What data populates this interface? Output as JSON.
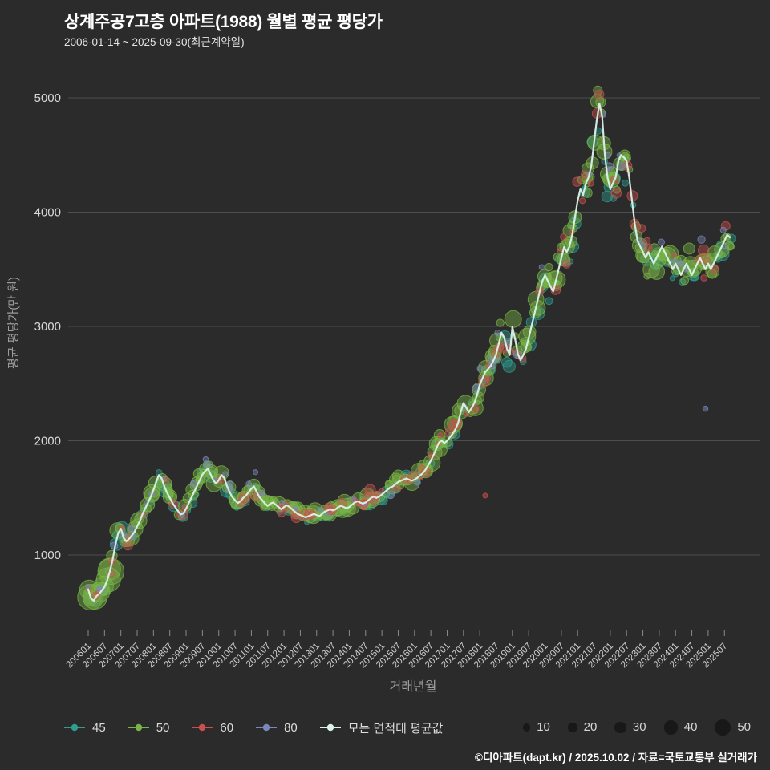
{
  "header": {
    "title": "상계주공7고층 아파트(1988) 월별 평균 평당가",
    "subtitle": "2006-01-14 ~ 2025-09-30(최근계약일)"
  },
  "footer": {
    "credit": "©디아파트(dapt.kr) / 2025.10.02 / 자료=국토교통부 실거래가"
  },
  "chart_data": {
    "type": "scatter",
    "title": "상계주공7고층 아파트(1988) 월별 평균 평당가",
    "subtitle": "2006-01-14 ~ 2025-09-30(최근계약일)",
    "xlabel": "거래년월",
    "ylabel": "평균 평당가(만 원)",
    "x_start": "2006-01",
    "x_end": "2025-09",
    "ylim": [
      300,
      5300
    ],
    "yticks": [
      1000,
      2000,
      3000,
      4000,
      5000
    ],
    "grid": "horizontal",
    "legend_position": "bottom",
    "xticks": [
      "200601",
      "200607",
      "200701",
      "200707",
      "200801",
      "200807",
      "200901",
      "200907",
      "201001",
      "201007",
      "201101",
      "201107",
      "201201",
      "201207",
      "201301",
      "201307",
      "201401",
      "201407",
      "201501",
      "201507",
      "201601",
      "201607",
      "201701",
      "201707",
      "201801",
      "201807",
      "201901",
      "201907",
      "202001",
      "202007",
      "202101",
      "202107",
      "202201",
      "202207",
      "202301",
      "202307",
      "202401",
      "202407",
      "202501",
      "202507"
    ],
    "series": [
      {
        "name": "모든 면적대 평균값",
        "type": "line",
        "color": "#dcf1ea",
        "values": [
          700,
          620,
          600,
          640,
          660,
          690,
          720,
          780,
          860,
          960,
          1090,
          1190,
          1230,
          1150,
          1120,
          1140,
          1170,
          1200,
          1250,
          1300,
          1360,
          1410,
          1460,
          1510,
          1570,
          1640,
          1700,
          1670,
          1600,
          1545,
          1500,
          1455,
          1420,
          1385,
          1355,
          1365,
          1405,
          1455,
          1505,
          1555,
          1605,
          1655,
          1705,
          1735,
          1755,
          1705,
          1655,
          1625,
          1655,
          1700,
          1675,
          1605,
          1550,
          1505,
          1480,
          1455,
          1470,
          1500,
          1520,
          1550,
          1580,
          1600,
          1550,
          1505,
          1480,
          1450,
          1430,
          1450,
          1460,
          1440,
          1420,
          1400,
          1420,
          1435,
          1420,
          1400,
          1380,
          1360,
          1350,
          1340,
          1330,
          1340,
          1350,
          1360,
          1350,
          1340,
          1360,
          1380,
          1390,
          1400,
          1390,
          1400,
          1420,
          1430,
          1420,
          1410,
          1420,
          1440,
          1460,
          1470,
          1460,
          1450,
          1460,
          1480,
          1500,
          1510,
          1500,
          1510,
          1530,
          1550,
          1570,
          1590,
          1600,
          1620,
          1640,
          1650,
          1660,
          1670,
          1660,
          1650,
          1660,
          1675,
          1695,
          1715,
          1745,
          1785,
          1825,
          1875,
          1930,
          1985,
          2000,
          1980,
          2000,
          2030,
          2060,
          2100,
          2150,
          2250,
          2330,
          2290,
          2250,
          2285,
          2330,
          2400,
          2490,
          2545,
          2600,
          2625,
          2655,
          2700,
          2755,
          2850,
          2945,
          2900,
          2805,
          2750,
          2995,
          2890,
          2760,
          2705,
          2750,
          2805,
          2900,
          3000,
          3100,
          3200,
          3300,
          3395,
          3450,
          3400,
          3350,
          3305,
          3400,
          3500,
          3600,
          3695,
          3650,
          3700,
          3800,
          3950,
          4100,
          4200,
          4150,
          4250,
          4305,
          4400,
          4600,
          4800,
          4950,
          4840,
          4500,
          4300,
          4200,
          4255,
          4305,
          4450,
          4500,
          4480,
          4450,
          4300,
          4100,
          3900,
          3750,
          3700,
          3650,
          3600,
          3650,
          3600,
          3550,
          3600,
          3650,
          3700,
          3650,
          3600,
          3550,
          3500,
          3550,
          3500,
          3450,
          3500,
          3550,
          3500,
          3450,
          3500,
          3550,
          3600,
          3550,
          3500,
          3550,
          3500,
          3550,
          3600,
          3650,
          3700,
          3750,
          3800,
          3780
        ]
      }
    ],
    "bubble_series": [
      {
        "name": "45",
        "color": "#2e9e8f",
        "freq": 0.55,
        "extra": 0.15,
        "spread": 0.05,
        "bias": -0.012,
        "rmin": 3,
        "rmax": 8
      },
      {
        "name": "50",
        "color": "#79b544",
        "freq": 0.85,
        "extra": 0.35,
        "spread": 0.06,
        "bias": 0.005,
        "rmin": 4,
        "rmax": 11
      },
      {
        "name": "60",
        "color": "#c9504e",
        "freq": 0.32,
        "extra": 0.1,
        "spread": 0.07,
        "bias": 0.0,
        "rmin": 3,
        "rmax": 7
      },
      {
        "name": "80",
        "color": "#7b87bb",
        "freq": 0.25,
        "extra": 0.1,
        "spread": 0.09,
        "bias": 0.025,
        "rmin": 2.5,
        "rmax": 5
      }
    ],
    "outliers": [
      {
        "month_index": 227,
        "group": "80",
        "value": 2280,
        "r": 3.2
      },
      {
        "month_index": 146,
        "group": "60",
        "value": 1520,
        "r": 3.0
      }
    ],
    "size_legend": {
      "values": [
        10,
        20,
        30,
        40,
        50
      ]
    }
  }
}
